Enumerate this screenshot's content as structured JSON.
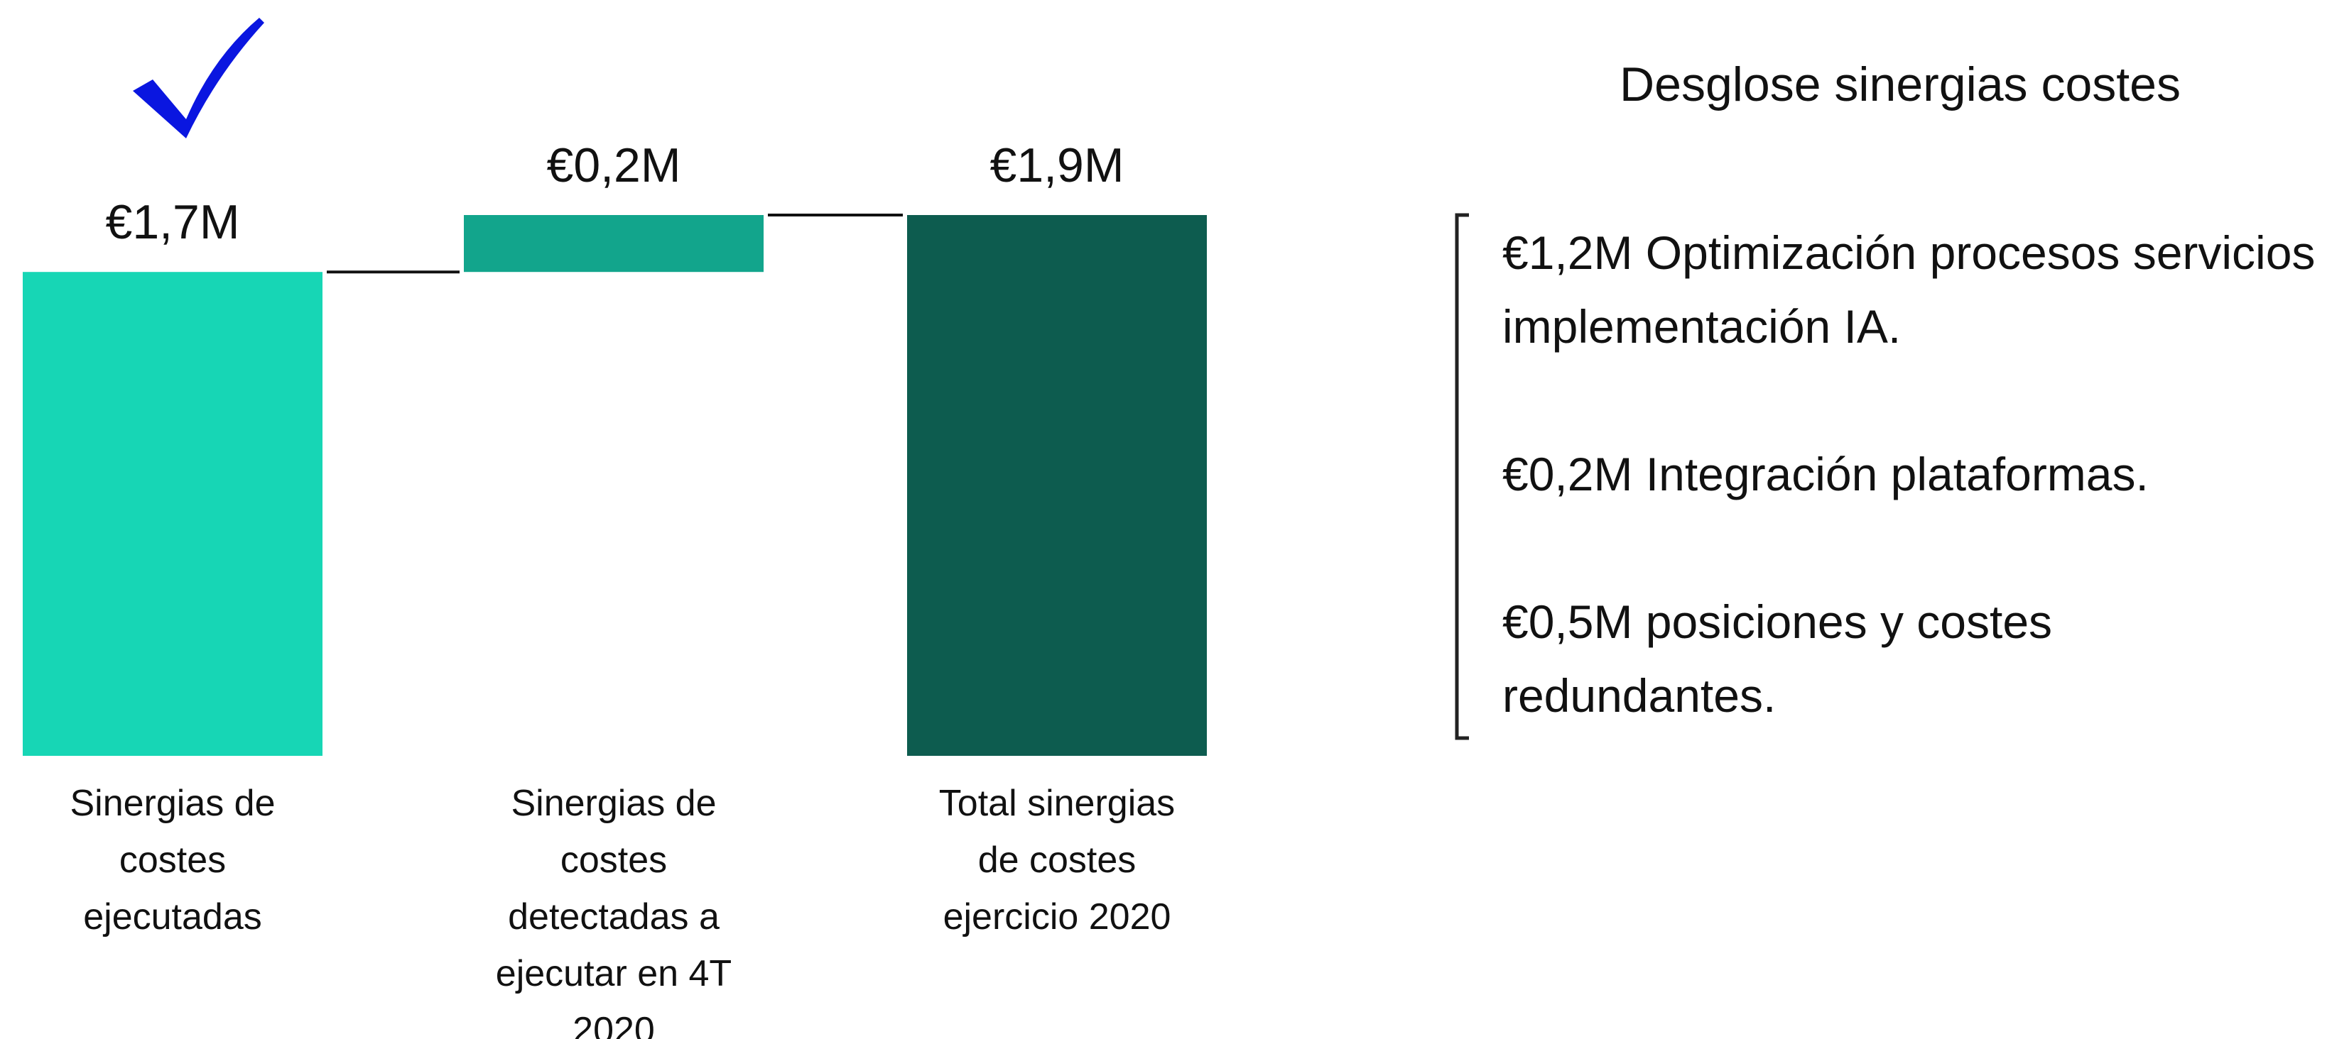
{
  "chart_data": {
    "type": "waterfall",
    "categories": [
      "Sinergias de costes ejecutadas",
      "Sinergias de costes detectadas a ejecutar en 4T 2020",
      "Total sinergias de costes ejercicio 2020"
    ],
    "values": [
      1.7,
      0.2,
      1.9
    ],
    "value_labels": [
      "€1,7M",
      "€0,2M",
      "€1,9M"
    ],
    "colors": [
      "#17d6b5",
      "#12a58c",
      "#0d5c4f"
    ]
  },
  "panel": {
    "title": "Desglose sinergias costes",
    "items": [
      "€1,2M Optimización procesos servicios implementación IA.",
      "€0,2M Integración plataformas.",
      "€0,5M posiciones y costes redundantes."
    ]
  }
}
